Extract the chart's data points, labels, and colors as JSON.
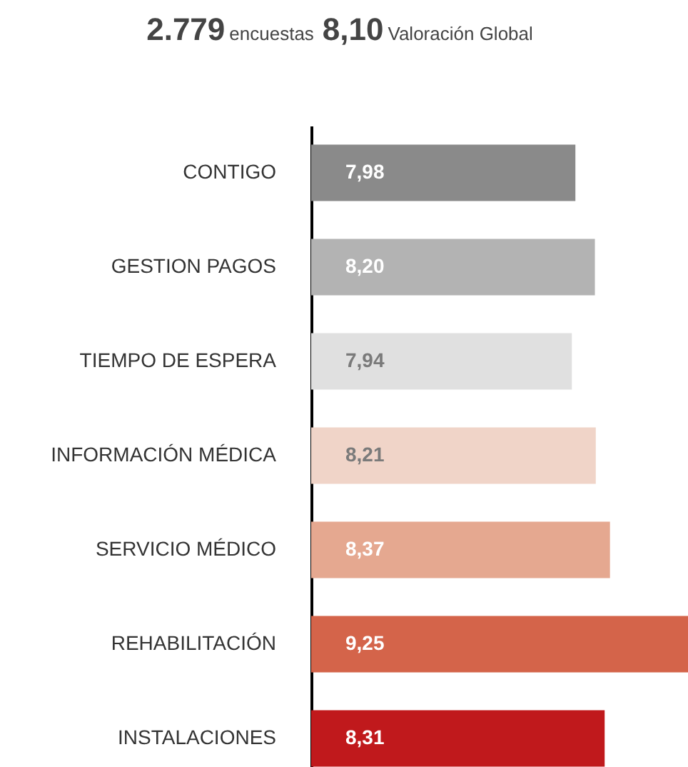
{
  "chart_data": {
    "type": "bar",
    "orientation": "horizontal",
    "annotations": [
      "2.779",
      "encuestas",
      "8,10",
      "Valoración Global"
    ],
    "categories": [
      "CONTIGO",
      "GESTION PAGOS",
      "TIEMPO DE ESPERA",
      "INFORMACIÓN MÉDICA",
      "SERVICIO MÉDICO",
      "REHABILITACIÓN",
      "INSTALACIONES"
    ],
    "values": [
      7.98,
      8.2,
      7.94,
      8.21,
      8.37,
      9.25,
      8.31
    ],
    "value_labels": [
      "7,98",
      "8,20",
      "7,94",
      "8,21",
      "8,37",
      "9,25",
      "8,31"
    ],
    "colors": [
      "#8a8a8a",
      "#b3b3b3",
      "#e0e0e0",
      "#f0d4c8",
      "#e5a890",
      "#d4644a",
      "#c0191c"
    ],
    "xlim": [
      5,
      9.25
    ]
  }
}
